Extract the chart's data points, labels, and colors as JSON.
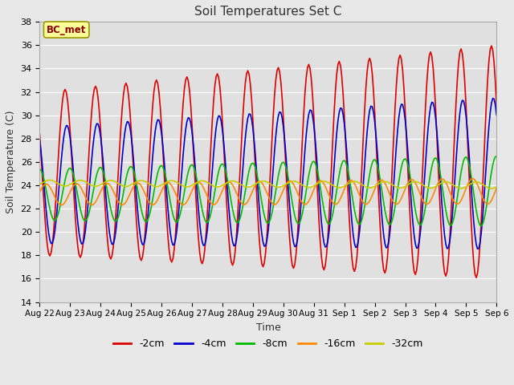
{
  "title": "Soil Temperatures Set C",
  "xlabel": "Time",
  "ylabel": "Soil Temperature (C)",
  "ylim": [
    14,
    38
  ],
  "yticks": [
    14,
    16,
    18,
    20,
    22,
    24,
    26,
    28,
    30,
    32,
    34,
    36,
    38
  ],
  "plot_bg_color": "#e0e0e0",
  "fig_bg_color": "#e8e8e8",
  "legend_label": "BC_met",
  "series_labels": [
    "-2cm",
    "-4cm",
    "-8cm",
    "-16cm",
    "-32cm"
  ],
  "series_colors": [
    "#dd0000",
    "#0000cc",
    "#00bb00",
    "#ff8800",
    "#cccc00"
  ],
  "line_widths": [
    1.2,
    1.2,
    1.2,
    1.2,
    1.2
  ],
  "n_days": 15,
  "xtick_labels": [
    "Aug 22",
    "Aug 23",
    "Aug 24",
    "Aug 25",
    "Aug 26",
    "Aug 27",
    "Aug 28",
    "Aug 29",
    "Aug 30",
    "Aug 31",
    "Sep 1",
    "Sep 2",
    "Sep 3",
    "Sep 4",
    "Sep 5",
    "Sep 6"
  ],
  "trend_start": [
    25.0,
    24.0,
    23.2,
    23.2,
    24.2
  ],
  "trend_end": [
    26.0,
    25.0,
    23.5,
    23.5,
    24.0
  ],
  "amplitude_start": [
    7.0,
    5.0,
    2.2,
    0.9,
    0.25
  ],
  "amplitude_end": [
    10.0,
    6.5,
    3.0,
    1.1,
    0.28
  ],
  "phase_shift_days": [
    0.0,
    0.06,
    0.16,
    0.38,
    0.5
  ],
  "peak_time_of_day": 0.58
}
